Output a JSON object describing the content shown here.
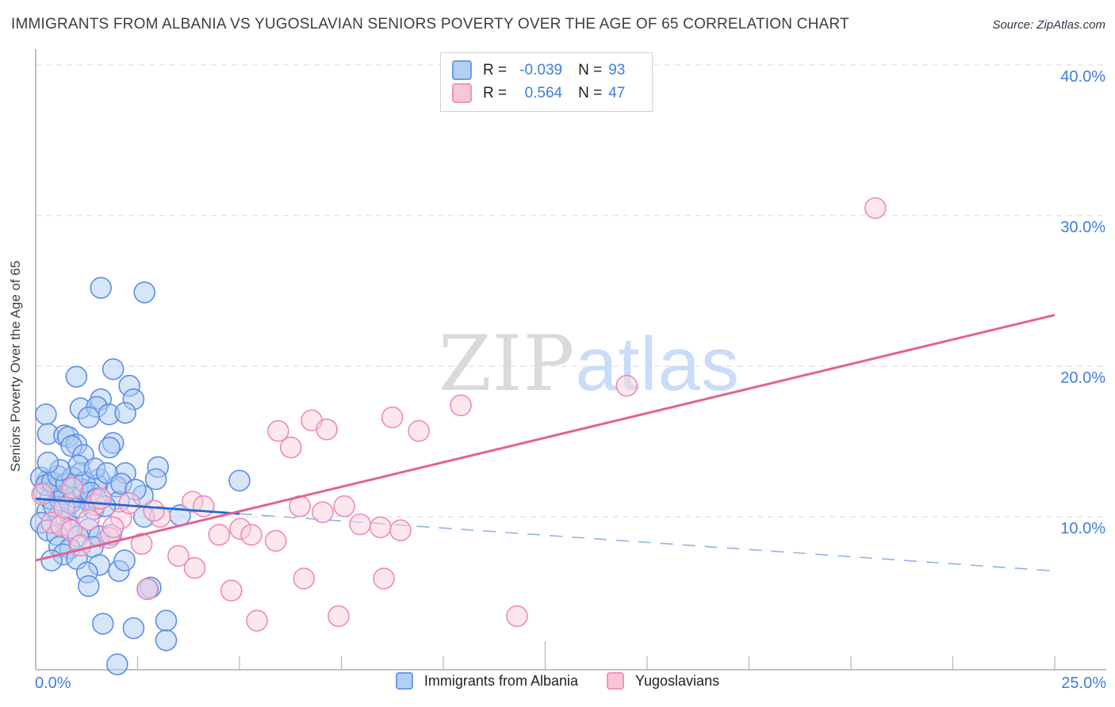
{
  "title": "IMMIGRANTS FROM ALBANIA VS YUGOSLAVIAN SENIORS POVERTY OVER THE AGE OF 65 CORRELATION CHART",
  "source": "Source: ZipAtlas.com",
  "legend_box": {
    "rows": [
      {
        "series": "Immigrants from Albania",
        "r_label": "R =",
        "r_value": "-0.039",
        "n_label": "N =",
        "n_value": "93"
      },
      {
        "series": "Yugoslavians",
        "r_label": "R =",
        "r_value": "0.564",
        "n_label": "N =",
        "n_value": "47"
      }
    ]
  },
  "bottom_legend": {
    "items": [
      {
        "label": "Immigrants from Albania"
      },
      {
        "label": "Yugoslavians"
      }
    ]
  },
  "y_axis": {
    "label": "Seniors Poverty Over the Age of 65",
    "ticks": [
      "40.0%",
      "30.0%",
      "20.0%",
      "10.0%"
    ],
    "tick_values": [
      40,
      30,
      20,
      10
    ]
  },
  "x_axis": {
    "min_label": "0.0%",
    "max_label": "25.0%",
    "tick_step": 2.5
  },
  "watermark": {
    "zip": "ZIP",
    "atlas": "atlas"
  },
  "colors": {
    "accent_blue": "#3f7de0",
    "point_blue_fill": "#aecbf2",
    "point_blue_stroke": "#5b8ee6",
    "point_pink_fill": "#f9cfdf",
    "point_pink_stroke": "#f08ab2",
    "trend_blue": "#2268d2",
    "trend_blue_dashed": "#8fb4ec",
    "trend_pink": "#e2638f",
    "grid": "#d9d9d9",
    "axis": "#9e9e9e",
    "watermark_gray": "#dadada",
    "watermark_blue": "#cadcf7"
  },
  "chart_data": {
    "type": "scatter",
    "title": "IMMIGRANTS FROM ALBANIA VS YUGOSLAVIAN SENIORS POVERTY OVER THE AGE OF 65 CORRELATION CHART",
    "xlabel": "",
    "ylabel": "Seniors Poverty Over the Age of 65",
    "xlim": [
      0,
      25
    ],
    "ylim": [
      0,
      41
    ],
    "grid": "horizontal-dashed",
    "legend_position": "bottom-center",
    "series": [
      {
        "name": "Immigrants from Albania",
        "r": -0.039,
        "n": 93,
        "points": [
          [
            1.6,
            25.2
          ],
          [
            2.67,
            24.9
          ],
          [
            1.0,
            19.3
          ],
          [
            1.9,
            19.8
          ],
          [
            2.3,
            18.7
          ],
          [
            2.4,
            17.8
          ],
          [
            1.6,
            17.8
          ],
          [
            1.1,
            17.2
          ],
          [
            1.5,
            17.3
          ],
          [
            1.8,
            16.8
          ],
          [
            1.3,
            16.6
          ],
          [
            2.2,
            16.9
          ],
          [
            0.25,
            16.8
          ],
          [
            0.3,
            15.5
          ],
          [
            0.7,
            15.4
          ],
          [
            0.8,
            15.3
          ],
          [
            1.0,
            14.8
          ],
          [
            1.9,
            14.9
          ],
          [
            0.88,
            14.7
          ],
          [
            1.17,
            14.1
          ],
          [
            1.81,
            14.6
          ],
          [
            1.1,
            12.9
          ],
          [
            2.2,
            12.9
          ],
          [
            0.29,
            12.4
          ],
          [
            0.13,
            12.6
          ],
          [
            0.91,
            11.9
          ],
          [
            3.0,
            13.3
          ],
          [
            2.95,
            12.5
          ],
          [
            1.56,
            12.5
          ],
          [
            1.51,
            12.1
          ],
          [
            1.98,
            12.0
          ],
          [
            2.63,
            11.4
          ],
          [
            5.0,
            12.4
          ],
          [
            1.32,
            11.0
          ],
          [
            2.04,
            11.0
          ],
          [
            2.66,
            10.0
          ],
          [
            3.54,
            10.1
          ],
          [
            1.42,
            10.5
          ],
          [
            0.29,
            10.4
          ],
          [
            0.55,
            10.0
          ],
          [
            0.75,
            9.8
          ],
          [
            0.13,
            9.6
          ],
          [
            0.81,
            9.2
          ],
          [
            1.3,
            9.2
          ],
          [
            0.29,
            9.1
          ],
          [
            0.52,
            8.8
          ],
          [
            1.04,
            8.7
          ],
          [
            1.56,
            8.7
          ],
          [
            1.85,
            8.8
          ],
          [
            0.58,
            8.0
          ],
          [
            0.84,
            7.9
          ],
          [
            1.4,
            8.0
          ],
          [
            0.68,
            7.5
          ],
          [
            1.01,
            7.2
          ],
          [
            0.39,
            7.1
          ],
          [
            1.56,
            6.8
          ],
          [
            1.26,
            6.3
          ],
          [
            2.04,
            6.4
          ],
          [
            2.18,
            7.1
          ],
          [
            2.82,
            5.3
          ],
          [
            1.3,
            5.4
          ],
          [
            2.75,
            5.2
          ],
          [
            1.65,
            2.9
          ],
          [
            2.4,
            2.6
          ],
          [
            3.2,
            3.1
          ],
          [
            3.2,
            1.8
          ],
          [
            2.0,
            0.2
          ],
          [
            0.2,
            11.6
          ],
          [
            0.35,
            11.2
          ],
          [
            0.5,
            11.9
          ],
          [
            0.6,
            11.1
          ],
          [
            0.45,
            10.7
          ],
          [
            0.7,
            11.5
          ],
          [
            0.85,
            10.9
          ],
          [
            0.95,
            11.3
          ],
          [
            1.05,
            10.6
          ],
          [
            1.15,
            11.8
          ],
          [
            0.25,
            12.1
          ],
          [
            0.4,
            12.3
          ],
          [
            0.55,
            12.7
          ],
          [
            0.75,
            12.2
          ],
          [
            0.9,
            12.6
          ],
          [
            1.2,
            12.3
          ],
          [
            1.35,
            11.6
          ],
          [
            1.5,
            11.2
          ],
          [
            1.7,
            10.7
          ],
          [
            1.05,
            13.4
          ],
          [
            0.6,
            13.1
          ],
          [
            0.3,
            13.6
          ],
          [
            1.45,
            13.2
          ],
          [
            1.75,
            12.9
          ],
          [
            2.1,
            12.2
          ],
          [
            2.45,
            11.8
          ]
        ]
      },
      {
        "name": "Yugoslavians",
        "r": 0.564,
        "n": 47,
        "points": [
          [
            0.16,
            11.5
          ],
          [
            0.39,
            9.6
          ],
          [
            0.62,
            9.4
          ],
          [
            0.88,
            9.1
          ],
          [
            1.46,
            10.8
          ],
          [
            2.74,
            5.2
          ],
          [
            4.8,
            5.1
          ],
          [
            5.43,
            3.1
          ],
          [
            3.85,
            11.0
          ],
          [
            4.12,
            10.7
          ],
          [
            5.02,
            9.2
          ],
          [
            5.29,
            8.8
          ],
          [
            3.05,
            10.0
          ],
          [
            5.95,
            15.7
          ],
          [
            6.77,
            16.4
          ],
          [
            7.14,
            15.8
          ],
          [
            6.26,
            14.6
          ],
          [
            8.75,
            16.6
          ],
          [
            9.4,
            15.7
          ],
          [
            10.43,
            17.4
          ],
          [
            14.5,
            18.7
          ],
          [
            20.6,
            30.5
          ],
          [
            6.48,
            10.7
          ],
          [
            7.04,
            10.3
          ],
          [
            7.57,
            10.7
          ],
          [
            7.96,
            9.5
          ],
          [
            8.46,
            9.3
          ],
          [
            8.95,
            9.1
          ],
          [
            5.89,
            8.4
          ],
          [
            6.58,
            5.9
          ],
          [
            8.54,
            5.9
          ],
          [
            7.43,
            3.4
          ],
          [
            11.81,
            3.4
          ],
          [
            0.7,
            10.6
          ],
          [
            1.3,
            9.8
          ],
          [
            1.8,
            8.6
          ],
          [
            2.1,
            9.9
          ],
          [
            2.6,
            8.2
          ],
          [
            3.5,
            7.4
          ],
          [
            0.9,
            11.9
          ],
          [
            1.6,
            11.2
          ],
          [
            2.3,
            10.9
          ],
          [
            4.5,
            8.8
          ],
          [
            3.9,
            6.6
          ],
          [
            1.1,
            8.1
          ],
          [
            2.9,
            10.4
          ],
          [
            1.9,
            9.3
          ]
        ]
      }
    ],
    "trend_lines": [
      {
        "series": "Immigrants from Albania",
        "style": "solid",
        "x1": 0.0,
        "y1": 11.2,
        "x2": 5.0,
        "y2": 10.2
      },
      {
        "series": "Immigrants from Albania",
        "style": "dashed",
        "x1": 5.0,
        "y1": 10.2,
        "x2": 25.0,
        "y2": 6.4
      },
      {
        "series": "Yugoslavians",
        "style": "solid",
        "x1": 0.0,
        "y1": 7.1,
        "x2": 25.0,
        "y2": 23.4
      }
    ]
  }
}
